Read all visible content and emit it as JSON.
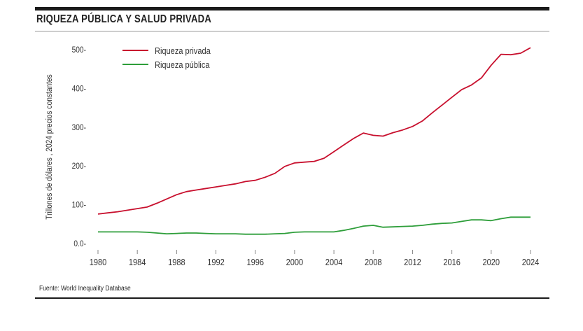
{
  "title": "RIQUEZA PÚBLICA Y SALUD PRIVADA",
  "source": "Fuente: World Inequality Database",
  "chart_data": {
    "type": "line",
    "title": "RIQUEZA PÚBLICA Y SALUD PRIVADA",
    "xlabel": "",
    "ylabel": "Trillones de dólares , 2024 precios constantes",
    "xlim": [
      1980,
      2024
    ],
    "ylim": [
      0,
      500
    ],
    "yticks": [
      0,
      100,
      200,
      300,
      400,
      500
    ],
    "ytick_labels": [
      "0.0-",
      "100-",
      "200-",
      "300-",
      "400-",
      "500-"
    ],
    "xticks": [
      1980,
      1984,
      1988,
      1992,
      1996,
      2000,
      2004,
      2008,
      2012,
      2016,
      2020,
      2024
    ],
    "grid": false,
    "legend_position": "top-left",
    "x": [
      1980,
      1981,
      1982,
      1983,
      1984,
      1985,
      1986,
      1987,
      1988,
      1989,
      1990,
      1991,
      1992,
      1993,
      1994,
      1995,
      1996,
      1997,
      1998,
      1999,
      2000,
      2001,
      2002,
      2003,
      2004,
      2005,
      2006,
      2007,
      2008,
      2009,
      2010,
      2011,
      2012,
      2013,
      2014,
      2015,
      2016,
      2017,
      2018,
      2019,
      2020,
      2021,
      2022,
      2023,
      2024
    ],
    "series": [
      {
        "name": "Riqueza privada",
        "color": "#c8102e",
        "values": [
          76,
          79,
          82,
          86,
          90,
          94,
          104,
          115,
          126,
          134,
          138,
          142,
          146,
          150,
          154,
          160,
          163,
          171,
          181,
          199,
          208,
          210,
          212,
          220,
          237,
          254,
          271,
          285,
          279,
          277,
          286,
          293,
          302,
          316,
          337,
          357,
          377,
          397,
          409,
          427,
          460,
          488,
          487,
          491,
          505
        ]
      },
      {
        "name": "Riqueza pública",
        "color": "#2e9e3a",
        "values": [
          30,
          30,
          30,
          30,
          30,
          29,
          27,
          25,
          26,
          27,
          27,
          26,
          25,
          25,
          25,
          24,
          24,
          24,
          25,
          26,
          29,
          30,
          30,
          30,
          30,
          34,
          39,
          45,
          47,
          42,
          43,
          44,
          45,
          47,
          50,
          52,
          53,
          57,
          61,
          61,
          59,
          64,
          68,
          68,
          68
        ]
      }
    ]
  }
}
